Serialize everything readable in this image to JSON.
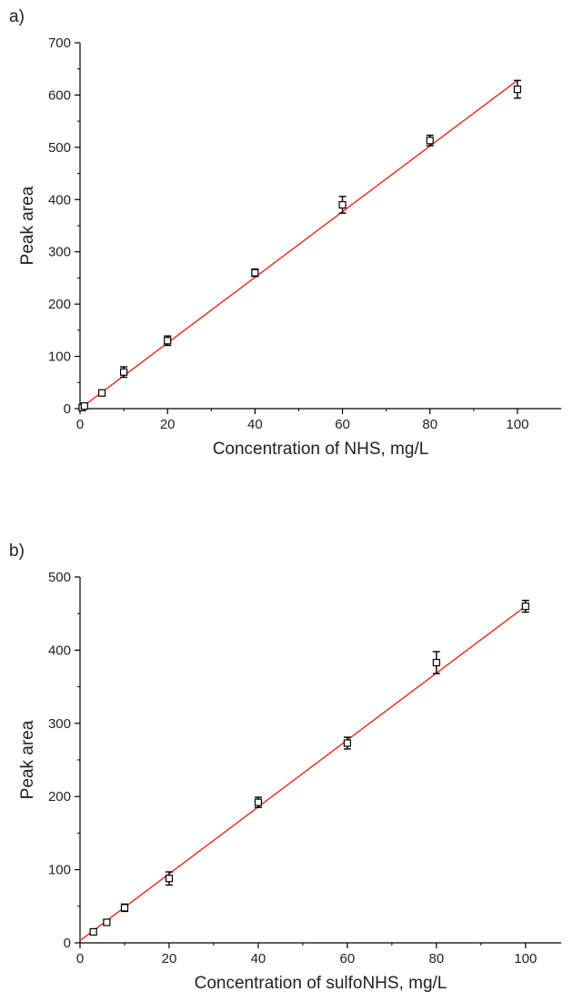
{
  "chart_data": [
    {
      "type": "scatter",
      "panel_label": "a)",
      "title": "",
      "xlabel": "Concentration of NHS, mg/L",
      "ylabel": "Peak area",
      "xlim": [
        0,
        110
      ],
      "ylim": [
        0,
        700
      ],
      "xticks": [
        0,
        20,
        40,
        60,
        80,
        100
      ],
      "yticks": [
        0,
        100,
        200,
        300,
        400,
        500,
        600,
        700
      ],
      "grid": false,
      "legend": "none",
      "series": [
        {
          "points": [
            {
              "x": 0.5,
              "y": 2,
              "err": 2
            },
            {
              "x": 1,
              "y": 5,
              "err": 2
            },
            {
              "x": 5,
              "y": 30,
              "err": 5
            },
            {
              "x": 10,
              "y": 70,
              "err": 10
            },
            {
              "x": 20,
              "y": 130,
              "err": 9
            },
            {
              "x": 40,
              "y": 260,
              "err": 7
            },
            {
              "x": 60,
              "y": 390,
              "err": 16
            },
            {
              "x": 80,
              "y": 513,
              "err": 10
            },
            {
              "x": 100,
              "y": 611,
              "err": 17
            }
          ],
          "marker": "open-square",
          "color": "#000000"
        }
      ],
      "fit_line": {
        "x": [
          0,
          100
        ],
        "y": [
          0,
          628
        ],
        "color": "#e8291c"
      }
    },
    {
      "type": "scatter",
      "panel_label": "b)",
      "title": "",
      "xlabel": "Concentration of sulfoNHS, mg/L",
      "ylabel": "Peak area",
      "xlim": [
        0,
        108
      ],
      "ylim": [
        0,
        500
      ],
      "xticks": [
        0,
        20,
        40,
        60,
        80,
        100
      ],
      "yticks": [
        0,
        100,
        200,
        300,
        400,
        500
      ],
      "grid": false,
      "legend": "none",
      "series": [
        {
          "points": [
            {
              "x": 3,
              "y": 15,
              "err": 4
            },
            {
              "x": 6,
              "y": 28,
              "err": 3
            },
            {
              "x": 10,
              "y": 48,
              "err": 5
            },
            {
              "x": 20,
              "y": 88,
              "err": 9
            },
            {
              "x": 40,
              "y": 192,
              "err": 7
            },
            {
              "x": 60,
              "y": 273,
              "err": 8
            },
            {
              "x": 80,
              "y": 383,
              "err": 15
            },
            {
              "x": 100,
              "y": 460,
              "err": 8
            }
          ],
          "marker": "open-square",
          "color": "#000000"
        }
      ],
      "fit_line": {
        "x": [
          0,
          100
        ],
        "y": [
          3,
          460
        ],
        "color": "#e8291c"
      }
    }
  ]
}
